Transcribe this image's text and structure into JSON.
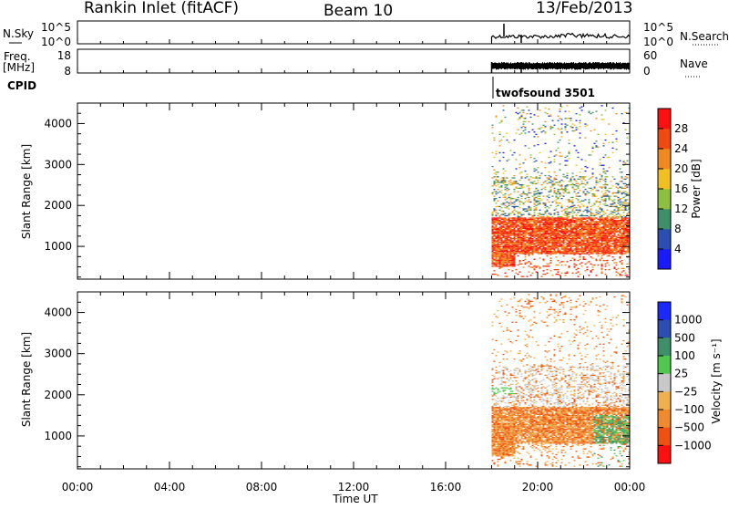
{
  "header": {
    "station": "Rankin Inlet (fitACF)",
    "beam": "Beam 10",
    "date": "13/Feb/2013"
  },
  "top_panel": {
    "left_label": "N.Sky",
    "right_label": "N.Search",
    "left_ticks": [
      "10^5",
      "10^0"
    ],
    "right_ticks": [
      "10^5",
      "10^0"
    ]
  },
  "freq_panel": {
    "left_label_1": "Freq.",
    "left_label_2": "[MHz]",
    "right_label": "Nave",
    "left_ticks": [
      "18",
      "8"
    ],
    "right_ticks": [
      "60",
      "0"
    ]
  },
  "cpid": {
    "label": "CPID",
    "program": "twofsound 3501"
  },
  "x_axis": {
    "title": "Time UT",
    "ticks": [
      "00:00",
      "04:00",
      "08:00",
      "12:00",
      "16:00",
      "20:00",
      "00:00"
    ]
  },
  "colors": {
    "power": [
      "#1a1aff",
      "#2a4fb0",
      "#3f8f6a",
      "#8fbf40",
      "#f0c020",
      "#f08a20",
      "#f04a10",
      "#ff1010"
    ],
    "velocity": [
      "#ff1010",
      "#f05010",
      "#f08a30",
      "#f0b050",
      "#c8c8c8",
      "#50c850",
      "#3f8f6a",
      "#2a4fb0",
      "#1a2aff"
    ]
  },
  "chart_data": [
    {
      "type": "heatmap",
      "name": "power",
      "ylabel": "Slant Range [km]",
      "yticks": [
        "1000",
        "2000",
        "3000",
        "4000"
      ],
      "ylim": [
        200,
        4500
      ],
      "xlim_hours": [
        0,
        24
      ],
      "data_start_hour": 18,
      "colorbar": {
        "label": "Power [dB]",
        "ticks": [
          "4",
          "8",
          "12",
          "16",
          "20",
          "24",
          "28"
        ],
        "range": [
          0,
          32
        ]
      }
    },
    {
      "type": "heatmap",
      "name": "velocity",
      "ylabel": "Slant Range [km]",
      "yticks": [
        "1000",
        "2000",
        "3000",
        "4000"
      ],
      "ylim": [
        200,
        4500
      ],
      "xlim_hours": [
        0,
        24
      ],
      "data_start_hour": 18,
      "colorbar": {
        "label": "Velocity [m s⁻¹]",
        "ticks": [
          "1000",
          "500",
          "100",
          "25",
          "−25",
          "−100",
          "−500",
          "−1000"
        ]
      }
    }
  ]
}
